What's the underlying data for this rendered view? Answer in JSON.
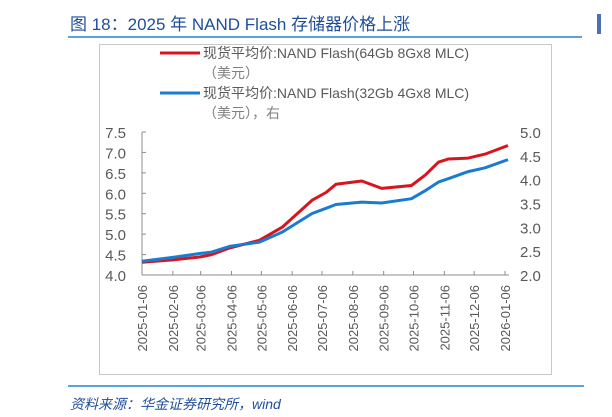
{
  "figure_title": "图 18：2025 年 NAND Flash 存储器价格上涨",
  "source": "资料来源：华金证券研究所，wind",
  "chart_data": {
    "type": "line",
    "title": "",
    "x": [
      "2025-01-06",
      "2025-02-06",
      "2025-03-05",
      "2025-03-17",
      "2025-04-04",
      "2025-05-04",
      "2025-05-27",
      "2025-06-26",
      "2025-07-10",
      "2025-07-20",
      "2025-08-15",
      "2025-09-04",
      "2025-10-04",
      "2025-10-18",
      "2025-10-31",
      "2025-11-10",
      "2025-11-30",
      "2025-12-17",
      "2026-01-09"
    ],
    "x_ticks": [
      "2025-01-06",
      "2025-02-06",
      "2025-03-06",
      "2025-04-06",
      "2025-05-06",
      "2025-06-06",
      "2025-07-06",
      "2025-08-06",
      "2025-09-06",
      "2025-10-06",
      "2025-11-06",
      "2025-12-06",
      "2026-01-06"
    ],
    "y_left": {
      "range": [
        4.0,
        7.5
      ],
      "ticks": [
        "4.0",
        "4.5",
        "5.0",
        "5.5",
        "6.0",
        "6.5",
        "7.0",
        "7.5"
      ]
    },
    "y_right": {
      "range": [
        2.0,
        5.0
      ],
      "ticks": [
        "2.0",
        "2.5",
        "3.0",
        "3.5",
        "4.0",
        "4.5",
        "5.0"
      ]
    },
    "grid": false,
    "legend_position": "top",
    "series": [
      {
        "name_line1": "现货平均价:NAND Flash(64Gb 8Gx8 MLC)",
        "name_line2": "（美元）",
        "axis": "left",
        "color": "#d7151f",
        "values": [
          4.31,
          4.37,
          4.44,
          4.5,
          4.66,
          4.85,
          5.17,
          5.83,
          6.02,
          6.22,
          6.3,
          6.12,
          6.19,
          6.45,
          6.76,
          6.84,
          6.86,
          6.96,
          7.17
        ]
      },
      {
        "name_line1": "现货平均价:NAND Flash(32Gb 4Gx8 MLC)",
        "name_line2": "（美元），右",
        "axis": "right",
        "color": "#1a7ccf",
        "values": [
          2.29,
          2.37,
          2.45,
          2.48,
          2.6,
          2.69,
          2.9,
          3.29,
          3.4,
          3.48,
          3.53,
          3.51,
          3.6,
          3.77,
          3.95,
          4.02,
          4.17,
          4.25,
          4.42
        ]
      }
    ]
  }
}
